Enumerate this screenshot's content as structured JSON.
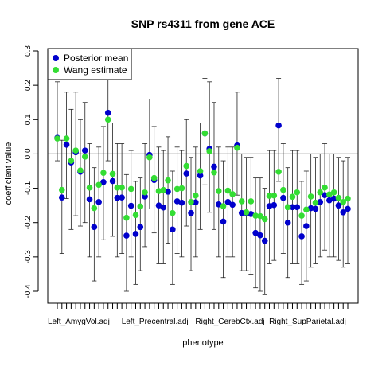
{
  "chart_data": {
    "type": "scatter",
    "title": "SNP rs4311 from gene ACE",
    "xlabel": "phenotype",
    "ylabel": "coefficient value",
    "ylim": [
      -0.43,
      0.3
    ],
    "yticks": [
      0.3,
      0.2,
      0.1,
      0.0,
      -0.1,
      -0.2,
      -0.3,
      -0.4
    ],
    "xtick_labels": [
      {
        "index": 1,
        "label": "Left_AmygVol.adj"
      },
      {
        "index": 17,
        "label": "Left_Precentral.adj"
      },
      {
        "index": 33,
        "label": "Right_CerebCtx.adj"
      },
      {
        "index": 49,
        "label": "Right_SupParietal.adj"
      }
    ],
    "reference_line": 0,
    "legend": {
      "position": "top-left",
      "entries": [
        {
          "name": "Posterior mean",
          "color": "#0000cc"
        },
        {
          "name": "Wang estimate",
          "color": "#33dd33"
        }
      ]
    },
    "series": [
      {
        "name": "Posterior mean",
        "color": "#0000cc",
        "x": [
          1,
          2,
          3,
          4,
          5,
          6,
          7,
          8,
          9,
          10,
          11,
          12,
          13,
          14,
          15,
          16,
          17,
          18,
          19,
          20,
          21,
          22,
          23,
          24,
          25,
          26,
          27,
          28,
          29,
          30,
          31,
          32,
          33,
          34,
          35,
          36,
          37,
          38,
          39,
          40,
          41,
          42,
          43,
          44,
          45,
          46,
          47,
          48,
          49,
          50,
          51,
          52,
          53,
          54,
          55,
          56,
          57,
          58,
          59,
          60,
          61,
          62,
          63,
          64
        ],
        "values": [
          0.047,
          -0.127,
          0.027,
          -0.025,
          0.005,
          -0.052,
          0.01,
          -0.132,
          -0.213,
          -0.14,
          -0.082,
          0.12,
          -0.079,
          -0.128,
          -0.127,
          -0.238,
          -0.151,
          -0.233,
          -0.213,
          -0.124,
          -0.003,
          -0.076,
          -0.15,
          -0.156,
          -0.11,
          -0.22,
          -0.138,
          -0.142,
          -0.057,
          -0.172,
          -0.141,
          -0.063,
          0.06,
          0.015,
          -0.037,
          -0.147,
          -0.197,
          -0.14,
          -0.148,
          0.025,
          -0.172,
          -0.172,
          -0.175,
          -0.23,
          -0.237,
          -0.253,
          -0.152,
          -0.149,
          0.083,
          -0.128,
          -0.2,
          -0.155,
          -0.155,
          -0.24,
          -0.21,
          -0.158,
          -0.16,
          -0.14,
          -0.12,
          -0.135,
          -0.13,
          -0.15,
          -0.17,
          -0.16
        ],
        "ci_low": [
          -0.02,
          -0.29,
          -0.13,
          -0.22,
          -0.18,
          -0.21,
          -0.2,
          -0.3,
          -0.37,
          -0.3,
          -0.25,
          -0.02,
          -0.24,
          -0.3,
          -0.29,
          -0.4,
          -0.3,
          -0.38,
          -0.34,
          -0.27,
          -0.16,
          -0.23,
          -0.32,
          -0.32,
          -0.26,
          -0.38,
          -0.29,
          -0.3,
          -0.21,
          -0.34,
          -0.3,
          -0.22,
          -0.09,
          -0.17,
          -0.22,
          -0.3,
          -0.36,
          -0.3,
          -0.3,
          -0.12,
          -0.34,
          -0.34,
          -0.35,
          -0.39,
          -0.4,
          -0.41,
          -0.32,
          -0.31,
          -0.08,
          -0.29,
          -0.36,
          -0.32,
          -0.32,
          -0.38,
          -0.37,
          -0.33,
          -0.32,
          -0.3,
          -0.28,
          -0.3,
          -0.3,
          -0.31,
          -0.33,
          -0.32
        ],
        "ci_high": [
          0.21,
          0.04,
          0.18,
          0.13,
          0.18,
          0.1,
          0.15,
          0.03,
          -0.04,
          0.02,
          0.08,
          0.25,
          0.09,
          0.03,
          0.03,
          -0.06,
          0.01,
          -0.08,
          -0.07,
          0.03,
          0.16,
          0.08,
          0.02,
          0.01,
          0.05,
          -0.05,
          0.02,
          0.01,
          0.1,
          -0.01,
          0.02,
          0.09,
          0.22,
          0.21,
          0.15,
          0.02,
          -0.02,
          0.02,
          0.02,
          0.18,
          0.0,
          -0.01,
          -0.01,
          -0.07,
          -0.07,
          -0.1,
          0.01,
          0.01,
          0.22,
          0.03,
          -0.04,
          0.01,
          0.01,
          -0.08,
          -0.05,
          0.0,
          -0.01,
          0.0,
          0.03,
          0.0,
          0.0,
          -0.01,
          -0.02,
          -0.01
        ]
      },
      {
        "name": "Wang estimate",
        "color": "#33dd33",
        "x": [
          1,
          2,
          3,
          4,
          5,
          6,
          7,
          8,
          9,
          10,
          11,
          12,
          13,
          14,
          15,
          16,
          17,
          18,
          19,
          20,
          21,
          22,
          23,
          24,
          25,
          26,
          27,
          28,
          29,
          30,
          31,
          32,
          33,
          34,
          35,
          36,
          37,
          38,
          39,
          40,
          41,
          42,
          43,
          44,
          45,
          46,
          47,
          48,
          49,
          50,
          51,
          52,
          53,
          54,
          55,
          56,
          57,
          58,
          59,
          60,
          61,
          62,
          63,
          64
        ],
        "values": [
          0.045,
          -0.105,
          0.045,
          -0.02,
          0.01,
          -0.048,
          -0.008,
          -0.098,
          -0.158,
          -0.09,
          -0.055,
          0.1,
          -0.058,
          -0.098,
          -0.098,
          -0.186,
          -0.102,
          -0.178,
          -0.153,
          -0.112,
          -0.01,
          -0.07,
          -0.108,
          -0.105,
          -0.077,
          -0.172,
          -0.102,
          -0.1,
          -0.035,
          -0.14,
          -0.121,
          -0.05,
          0.06,
          0.008,
          -0.054,
          -0.108,
          -0.152,
          -0.107,
          -0.117,
          0.018,
          -0.138,
          -0.17,
          -0.138,
          -0.18,
          -0.181,
          -0.19,
          -0.122,
          -0.121,
          -0.052,
          -0.105,
          -0.155,
          -0.125,
          -0.112,
          -0.18,
          -0.162,
          -0.124,
          -0.142,
          -0.112,
          -0.098,
          -0.118,
          -0.112,
          -0.128,
          -0.14,
          -0.13
        ]
      }
    ]
  }
}
